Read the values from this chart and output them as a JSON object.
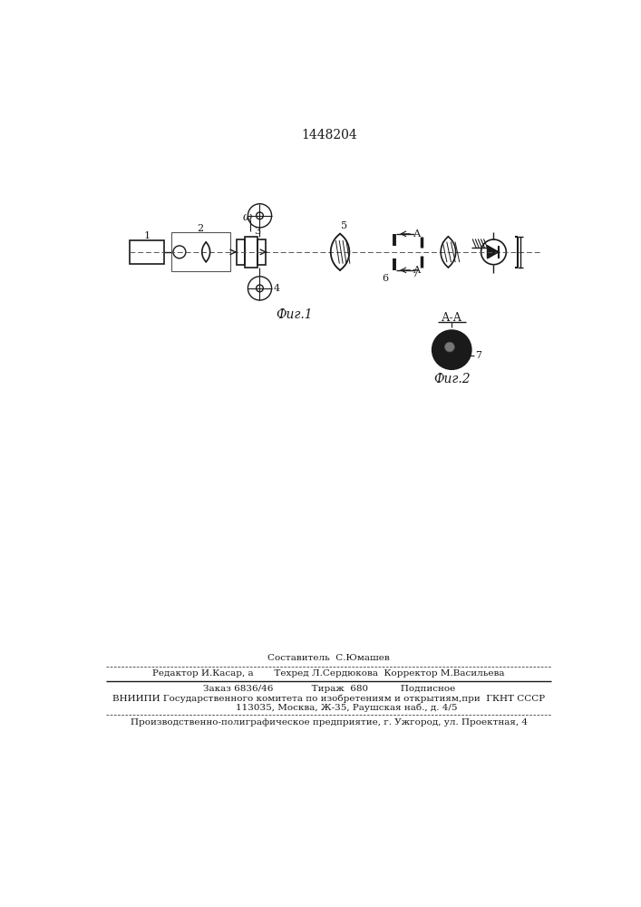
{
  "patent_number": "1448204",
  "background_color": "#ffffff",
  "line_color": "#1a1a1a",
  "fig1_label": "Фиг.1",
  "fig2_label": "Фиг.2",
  "footer_lines": [
    "Составитель  С.Юмашев",
    "Редактор И.Касар, а       Техред Л.Сердюкова  Корректор М.Васильева",
    "Заказ 6836/46             Тираж  680           Подписное",
    "ВНИИПИ Государственного комитета по изобретениям и открытиям,при  ГКНТ СССР",
    "            113035, Москва, Ж-35, Раушская наб., д. 4/5",
    "Производственно-полиграфическое предприятие, г. Ужгород, ул. Проектная, 4"
  ]
}
